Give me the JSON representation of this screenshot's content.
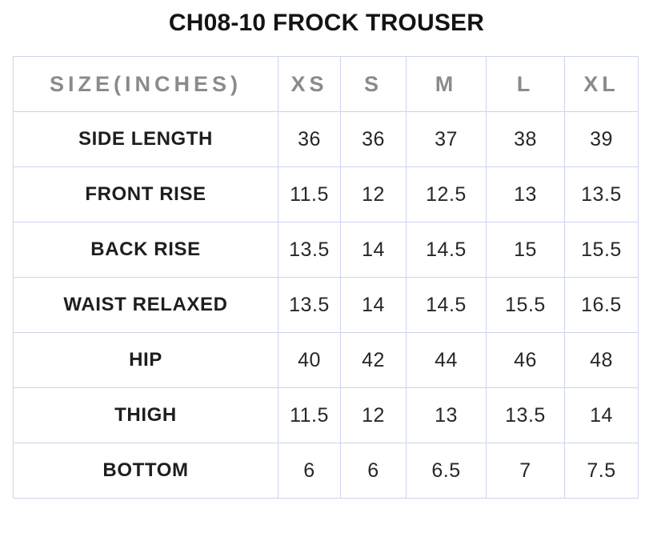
{
  "title": "CH08-10 FROCK TROUSER",
  "table": {
    "header": {
      "size_unit": "SIZE(INCHES)",
      "xs": "XS",
      "s": "S",
      "m": "M",
      "l": "L",
      "xl": "XL"
    },
    "rows": [
      {
        "label": "SIDE LENGTH",
        "values": [
          "36",
          "36",
          "37",
          "38",
          "39"
        ]
      },
      {
        "label": "FRONT RISE",
        "values": [
          "11.5",
          "12",
          "12.5",
          "13",
          "13.5"
        ]
      },
      {
        "label": "BACK RISE",
        "values": [
          "13.5",
          "14",
          "14.5",
          "15",
          "15.5"
        ]
      },
      {
        "label": "WAIST RELAXED",
        "values": [
          "13.5",
          "14",
          "14.5",
          "15.5",
          "16.5"
        ]
      },
      {
        "label": "HIP",
        "values": [
          "40",
          "42",
          "44",
          "46",
          "48"
        ]
      },
      {
        "label": "THIGH",
        "values": [
          "11.5",
          "12",
          "13",
          "13.5",
          "14"
        ]
      },
      {
        "label": "BOTTOM",
        "values": [
          "6",
          "6",
          "6.5",
          "7",
          "7.5"
        ]
      }
    ]
  },
  "colors": {
    "border": "#ccd4ee",
    "title_text": "#141414",
    "header_text": "#8b8b8b",
    "label_text": "#1e1e1e",
    "value_text": "#272727",
    "background": "#ffffff"
  }
}
